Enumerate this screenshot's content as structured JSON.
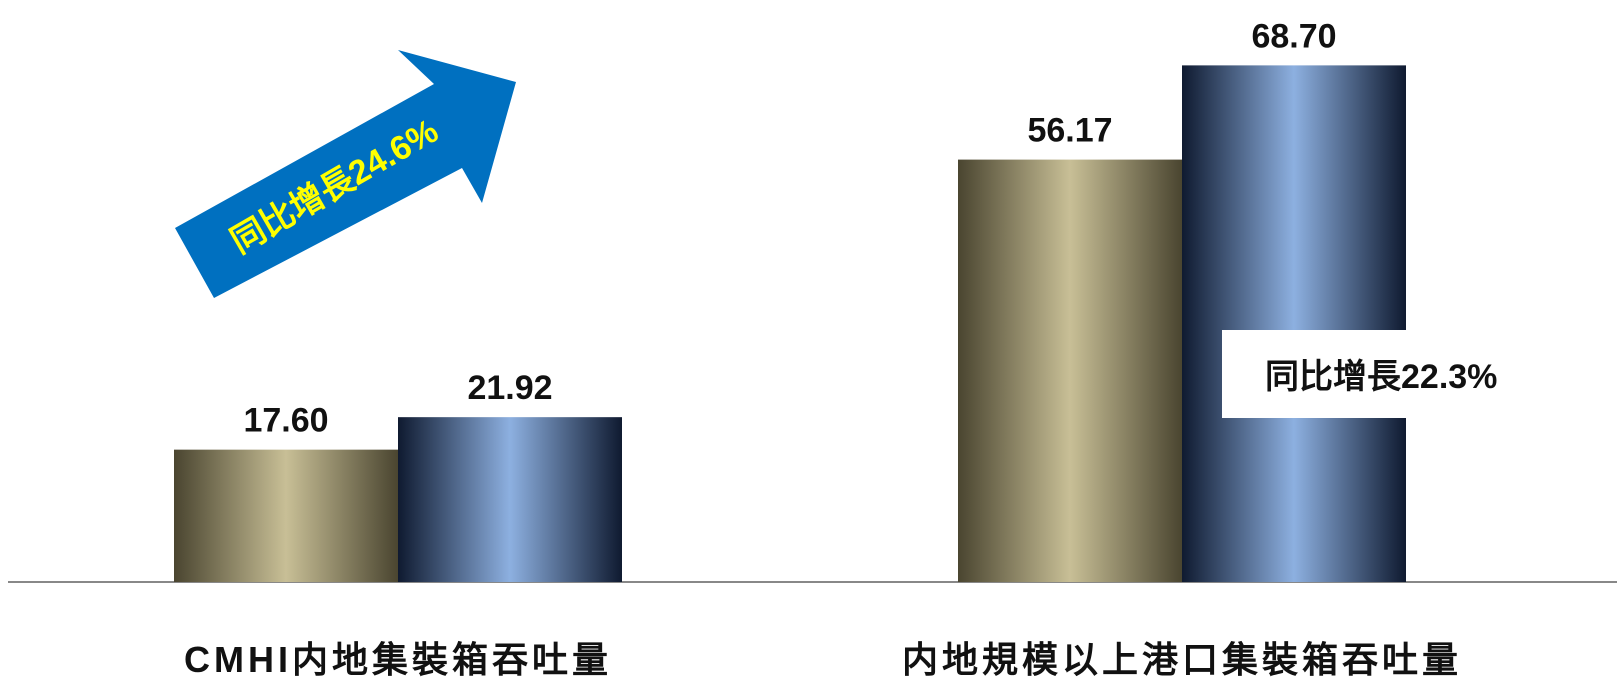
{
  "chart_data": {
    "type": "bar",
    "categories": [
      "CMHI内地集裝箱吞吐量",
      "内地規模以上港口集裝箱吞吐量"
    ],
    "series": [
      {
        "color": "#c8bf96",
        "values": [
          17.6,
          56.17
        ],
        "value_labels": [
          "17.60",
          "56.17"
        ]
      },
      {
        "color": "#8db0e0",
        "values": [
          21.92,
          68.7
        ],
        "value_labels": [
          "21.92",
          "68.70"
        ]
      }
    ],
    "ylim": [
      0,
      75
    ],
    "annotations": [
      "同比增長24.6%",
      "同比增長22.3%"
    ]
  }
}
